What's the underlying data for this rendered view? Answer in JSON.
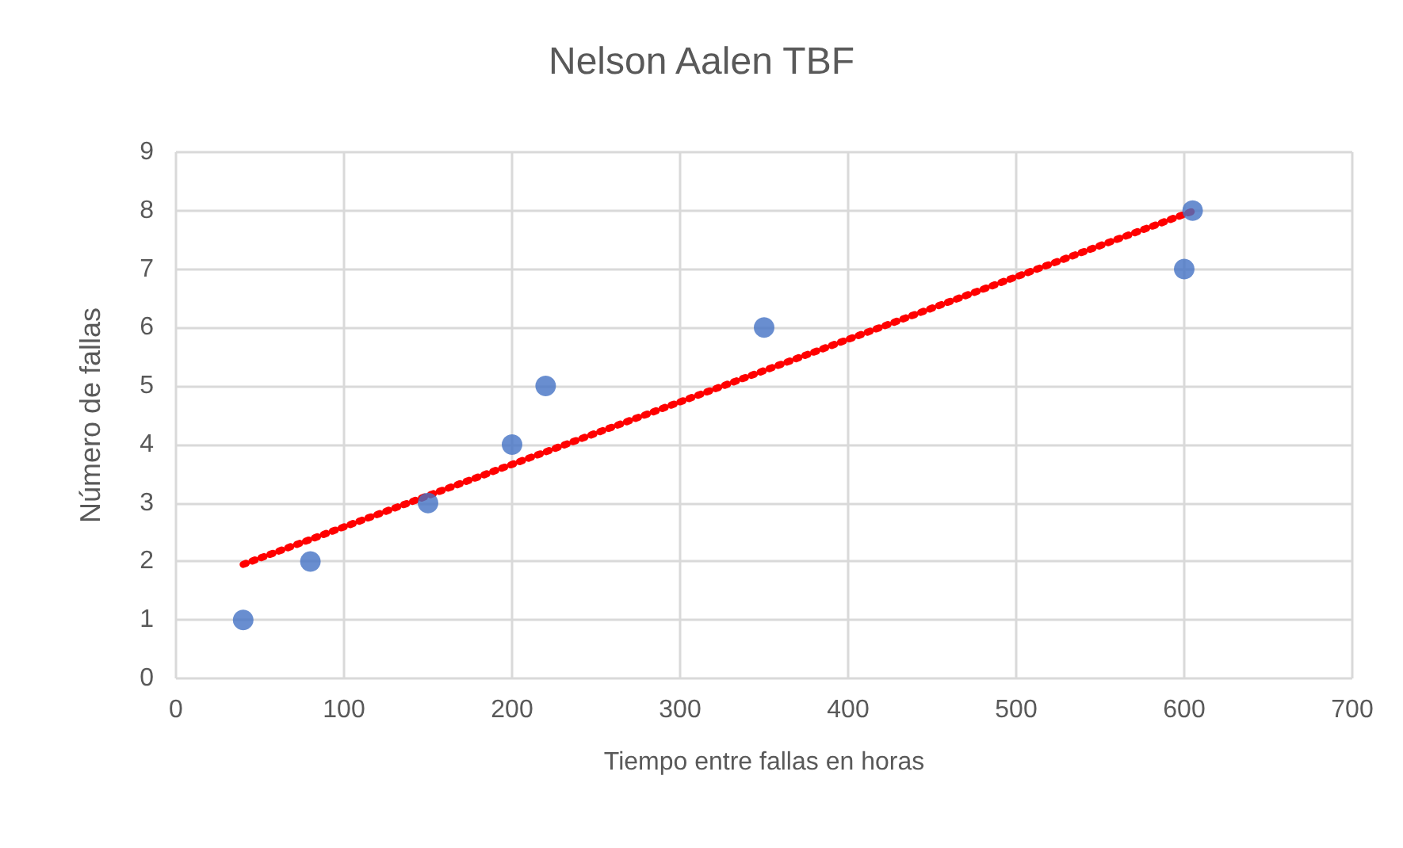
{
  "chart_data": {
    "type": "scatter",
    "title": "Nelson Aalen TBF",
    "xlabel": "Tiempo entre fallas en horas",
    "ylabel": "Número de fallas",
    "xlim": [
      0,
      700
    ],
    "xticks": [
      0,
      100,
      200,
      300,
      400,
      500,
      600,
      700
    ],
    "ylim": [
      0,
      9
    ],
    "yticks": [
      0,
      1,
      2,
      3,
      4,
      5,
      6,
      7,
      8,
      9
    ],
    "grid": true,
    "marker": "circle",
    "series": [
      {
        "color": "#4472c4",
        "x": [
          40,
          80,
          150,
          200,
          220,
          350,
          600,
          605
        ],
        "values": [
          1,
          2,
          3,
          4,
          5,
          6,
          7,
          8
        ]
      },
      {
        "type": "line",
        "color": "#ff0000",
        "line_style": "dotted",
        "marker": "none",
        "x": [
          40,
          605
        ],
        "values": [
          1.95,
          7.99
        ]
      }
    ]
  }
}
